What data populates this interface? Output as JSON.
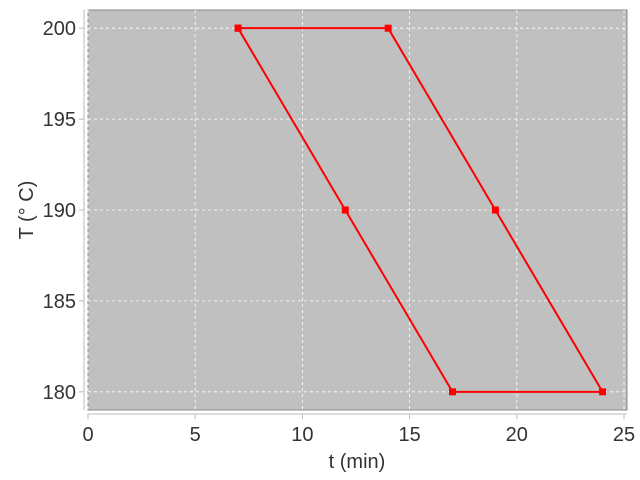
{
  "chart_data": {
    "type": "line",
    "title": "",
    "xlabel": "t (min)",
    "ylabel": "T (° C)",
    "xlim": [
      0,
      25.14
    ],
    "ylim": [
      179.0,
      201.0
    ],
    "xticks": [
      0,
      5,
      10,
      15,
      20,
      25
    ],
    "yticks": [
      180,
      185,
      190,
      195,
      200
    ],
    "grid": true,
    "legend": "none",
    "background_color": "#c0c0c0",
    "series": [
      {
        "color": "#ff0000",
        "marker": "square",
        "x": [
          7,
          14,
          19,
          24,
          17,
          12,
          7
        ],
        "y": [
          200,
          200,
          190,
          180,
          180,
          190,
          200
        ]
      }
    ]
  }
}
